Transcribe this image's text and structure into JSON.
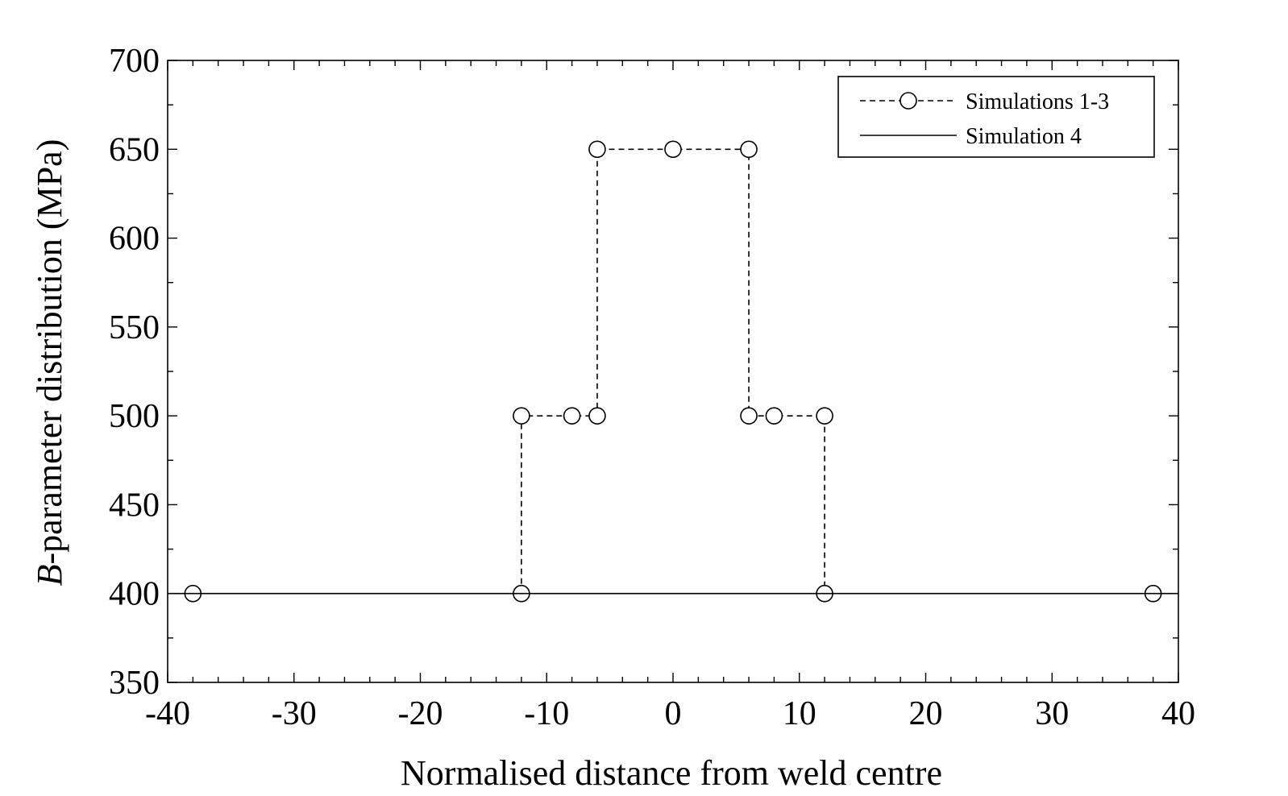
{
  "chart_data": {
    "type": "line",
    "xlabel": "Normalised distance from weld centre",
    "ylabel_italic": "B",
    "ylabel_rest": "-parameter distribution (MPa)",
    "xlim": [
      -40,
      40
    ],
    "ylim": [
      350,
      700
    ],
    "x_major_ticks": [
      -40,
      -30,
      -20,
      -10,
      0,
      10,
      20,
      30,
      40
    ],
    "x_tick_labels": [
      "-40",
      "-30",
      "-20",
      "-10",
      "0",
      "10",
      "20",
      "30",
      "40"
    ],
    "x_minor_step": 2,
    "y_major_ticks": [
      350,
      400,
      450,
      500,
      550,
      600,
      650,
      700
    ],
    "y_tick_labels": [
      "350",
      "400",
      "450",
      "500",
      "550",
      "600",
      "650",
      "700"
    ],
    "y_minor_step": 25,
    "grid": false,
    "legend_position": "top-right",
    "series": [
      {
        "name": "Simulations 1-3",
        "style": "dashed",
        "marker": "circle",
        "line_points": [
          {
            "x": -12,
            "y": 400
          },
          {
            "x": -12,
            "y": 500
          },
          {
            "x": -6,
            "y": 500
          },
          {
            "x": -6,
            "y": 650
          },
          {
            "x": 6,
            "y": 650
          },
          {
            "x": 6,
            "y": 500
          },
          {
            "x": 12,
            "y": 500
          },
          {
            "x": 12,
            "y": 400
          }
        ],
        "markers": [
          {
            "x": -38,
            "y": 400
          },
          {
            "x": -12,
            "y": 400
          },
          {
            "x": -12,
            "y": 500
          },
          {
            "x": -8,
            "y": 500
          },
          {
            "x": -6,
            "y": 500
          },
          {
            "x": -6,
            "y": 650
          },
          {
            "x": 0,
            "y": 650
          },
          {
            "x": 6,
            "y": 650
          },
          {
            "x": 6,
            "y": 500
          },
          {
            "x": 8,
            "y": 500
          },
          {
            "x": 12,
            "y": 500
          },
          {
            "x": 12,
            "y": 400
          },
          {
            "x": 38,
            "y": 400
          }
        ]
      },
      {
        "name": "Simulation 4",
        "style": "solid",
        "marker": "none",
        "line_points": [
          {
            "x": -40,
            "y": 400
          },
          {
            "x": 40,
            "y": 400
          }
        ]
      }
    ]
  },
  "colors": {
    "line": "#000000",
    "marker_fill": "#ffffff",
    "background": "#ffffff"
  }
}
